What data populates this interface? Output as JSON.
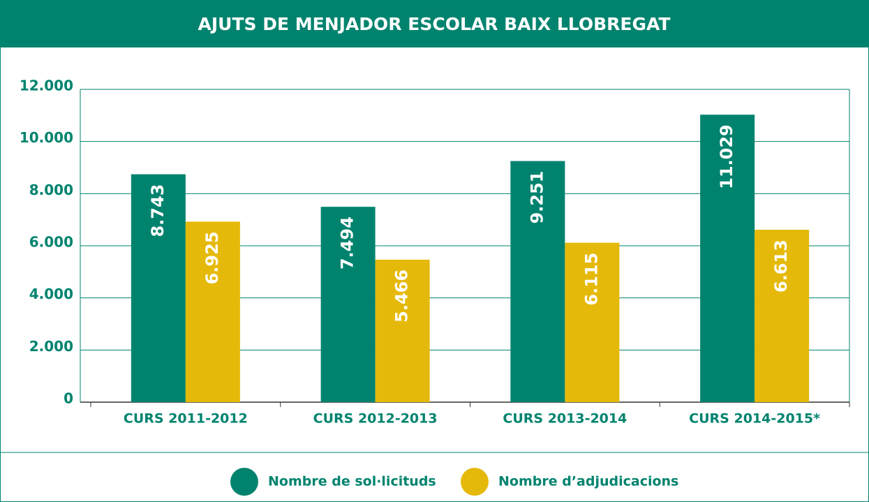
{
  "chart_data": {
    "type": "bar",
    "title": "AJUTS DE MENJADOR ESCOLAR BAIX LLOBREGAT",
    "categories": [
      "CURS 2011-2012",
      "CURS 2012-2013",
      "CURS 2013-2014",
      "CURS 2014-2015*"
    ],
    "series": [
      {
        "name": "Nombre de sol·licituds",
        "color": "#00836e",
        "values": [
          8743,
          7494,
          9251,
          11029
        ],
        "value_labels": [
          "8.743",
          "7.494",
          "9.251",
          "11.029"
        ]
      },
      {
        "name": "Nombre d’adjudicacions",
        "color": "#e5b909",
        "values": [
          6925,
          5466,
          6115,
          6613
        ],
        "value_labels": [
          "6.925",
          "5.466",
          "6.115",
          "6.613"
        ]
      }
    ],
    "ylim": [
      0,
      12000
    ],
    "yticks": [
      0,
      {
        "value": 2000,
        "label": "2.000"
      },
      {
        "value": 4000,
        "label": "4.000"
      },
      {
        "value": 6000,
        "label": "6.000"
      },
      {
        "value": 8000,
        "label": "8.000"
      },
      {
        "value": 10000,
        "label": "10.000"
      },
      {
        "value": 12000,
        "label": "12.000"
      }
    ],
    "grid": true,
    "legend": "bottom"
  }
}
